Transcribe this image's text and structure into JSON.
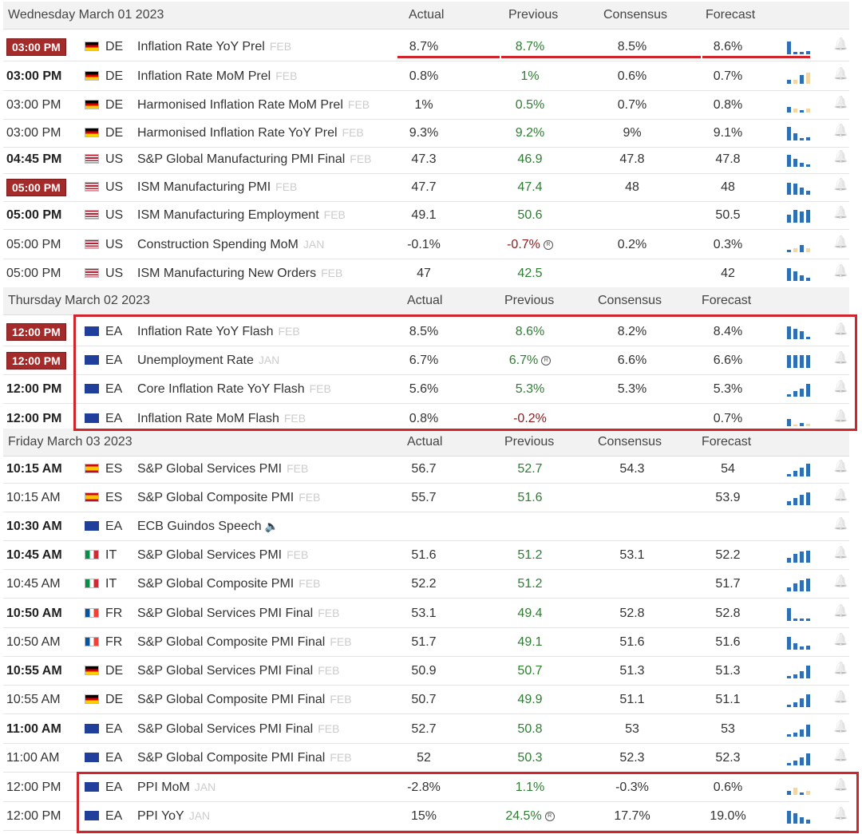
{
  "columns": {
    "actual": "Actual",
    "previous": "Previous",
    "consensus": "Consensus",
    "forecast": "Forecast"
  },
  "days": [
    {
      "date": "Wednesday March 01 2023",
      "rows": [
        {
          "time": "03:00 PM",
          "style": "badge",
          "ccy": "DE",
          "flag": "de",
          "event": "Inflation Rate YoY Prel",
          "ref": "FEB",
          "actual": "8.7%",
          "previous": "8.7%",
          "prev_color": "green",
          "consensus": "8.5%",
          "forecast": "8.6%",
          "bars": [
            0.9,
            0.15,
            0.15,
            0.2
          ],
          "barcolor": "#2f6fb3"
        },
        {
          "time": "03:00 PM",
          "style": "bold",
          "ccy": "DE",
          "flag": "de",
          "event": "Inflation Rate MoM Prel",
          "ref": "FEB",
          "actual": "0.8%",
          "previous": "1%",
          "prev_color": "green",
          "consensus": "0.6%",
          "forecast": "0.7%",
          "bars": [
            0.25,
            0.3,
            0.6,
            0.8
          ],
          "barcolor": "mixed"
        },
        {
          "time": "03:00 PM",
          "style": "normal",
          "ccy": "DE",
          "flag": "de",
          "event": "Harmonised Inflation Rate MoM Prel",
          "ref": "FEB",
          "actual": "1%",
          "previous": "0.5%",
          "prev_color": "green",
          "consensus": "0.7%",
          "forecast": "0.8%",
          "bars": [
            0.4,
            0.3,
            0.15,
            0.3
          ],
          "barcolor": "mixed"
        },
        {
          "time": "03:00 PM",
          "style": "normal",
          "ccy": "DE",
          "flag": "de",
          "event": "Harmonised Inflation Rate YoY Prel",
          "ref": "FEB",
          "actual": "9.3%",
          "previous": "9.2%",
          "prev_color": "green",
          "consensus": "9%",
          "forecast": "9.1%",
          "bars": [
            0.95,
            0.5,
            0.15,
            0.2
          ],
          "barcolor": "#2f6fb3"
        },
        {
          "time": "04:45 PM",
          "style": "bold",
          "ccy": "US",
          "flag": "us",
          "event": "S&P Global Manufacturing PMI Final",
          "ref": "FEB",
          "actual": "47.3",
          "previous": "46.9",
          "prev_color": "green",
          "consensus": "47.8",
          "forecast": "47.8",
          "bars": [
            0.85,
            0.55,
            0.3,
            0.15
          ],
          "barcolor": "#2f6fb3"
        },
        {
          "time": "05:00 PM",
          "style": "badge",
          "ccy": "US",
          "flag": "us",
          "event": "ISM Manufacturing PMI",
          "ref": "FEB",
          "actual": "47.7",
          "previous": "47.4",
          "prev_color": "green",
          "consensus": "48",
          "forecast": "48",
          "bars": [
            0.85,
            0.75,
            0.5,
            0.3
          ],
          "barcolor": "#2f6fb3"
        },
        {
          "time": "05:00 PM",
          "style": "bold",
          "ccy": "US",
          "flag": "us",
          "event": "ISM Manufacturing Employment",
          "ref": "FEB",
          "actual": "49.1",
          "previous": "50.6",
          "prev_color": "green",
          "consensus": "",
          "forecast": "50.5",
          "bars": [
            0.55,
            0.9,
            0.75,
            0.9
          ],
          "barcolor": "#2f6fb3"
        },
        {
          "time": "05:00 PM",
          "style": "normal",
          "ccy": "US",
          "flag": "us",
          "event": "Construction Spending MoM",
          "ref": "JAN",
          "actual": "-0.1%",
          "previous": "-0.7%",
          "prev_color": "red",
          "prev_revised": true,
          "consensus": "0.2%",
          "forecast": "0.3%",
          "bars": [
            0.15,
            0.3,
            0.5,
            0.25
          ],
          "barcolor": "mixed"
        },
        {
          "time": "05:00 PM",
          "style": "normal",
          "ccy": "US",
          "flag": "us",
          "event": "ISM Manufacturing New Orders",
          "ref": "FEB",
          "actual": "47",
          "previous": "42.5",
          "prev_color": "green",
          "consensus": "",
          "forecast": "42",
          "bars": [
            0.9,
            0.65,
            0.4,
            0.2
          ],
          "barcolor": "#2f6fb3"
        }
      ]
    },
    {
      "date": "Thursday March 02 2023",
      "rows": [
        {
          "time": "12:00 PM",
          "style": "badge",
          "ccy": "EA",
          "flag": "ea",
          "event": "Inflation Rate YoY Flash",
          "ref": "FEB",
          "actual": "8.5%",
          "previous": "8.6%",
          "prev_color": "green",
          "consensus": "8.2%",
          "forecast": "8.4%",
          "bars": [
            0.9,
            0.7,
            0.55,
            0.15
          ],
          "barcolor": "#2f6fb3"
        },
        {
          "time": "12:00 PM",
          "style": "badge",
          "ccy": "EA",
          "flag": "ea",
          "event": "Unemployment Rate",
          "ref": "JAN",
          "actual": "6.7%",
          "previous": "6.7%",
          "prev_color": "green",
          "prev_revised": true,
          "consensus": "6.6%",
          "forecast": "6.6%",
          "bars": [
            0.9,
            0.9,
            0.9,
            0.9
          ],
          "barcolor": "#2f6fb3"
        },
        {
          "time": "12:00 PM",
          "style": "bold",
          "ccy": "EA",
          "flag": "ea",
          "event": "Core Inflation Rate YoY Flash",
          "ref": "FEB",
          "actual": "5.6%",
          "previous": "5.3%",
          "prev_color": "green",
          "consensus": "5.3%",
          "forecast": "5.3%",
          "bars": [
            0.15,
            0.4,
            0.55,
            0.9
          ],
          "barcolor": "#2f6fb3"
        },
        {
          "time": "12:00 PM",
          "style": "bold",
          "ccy": "EA",
          "flag": "ea",
          "event": "Inflation Rate MoM Flash",
          "ref": "FEB",
          "actual": "0.8%",
          "previous": "-0.2%",
          "prev_color": "red",
          "consensus": "",
          "forecast": "0.7%",
          "bars": [
            0.5,
            0.1,
            0.2,
            0.15
          ],
          "barcolor": "mixed"
        }
      ]
    },
    {
      "date": "Friday March 03 2023",
      "rows": [
        {
          "time": "10:15 AM",
          "style": "bold",
          "ccy": "ES",
          "flag": "es",
          "event": "S&P Global Services PMI",
          "ref": "FEB",
          "actual": "56.7",
          "previous": "52.7",
          "prev_color": "green",
          "consensus": "54.3",
          "forecast": "54",
          "bars": [
            0.15,
            0.4,
            0.6,
            0.9
          ],
          "barcolor": "#2f6fb3"
        },
        {
          "time": "10:15 AM",
          "style": "normal",
          "ccy": "ES",
          "flag": "es",
          "event": "S&P Global Composite PMI",
          "ref": "FEB",
          "actual": "55.7",
          "previous": "51.6",
          "prev_color": "green",
          "consensus": "",
          "forecast": "53.9",
          "bars": [
            0.3,
            0.5,
            0.7,
            0.9
          ],
          "barcolor": "#2f6fb3"
        },
        {
          "time": "10:30 AM",
          "style": "bold",
          "ccy": "EA",
          "flag": "ea",
          "event": "ECB Guindos Speech",
          "ref": "",
          "speech": true,
          "actual": "",
          "previous": "",
          "prev_color": "green",
          "consensus": "",
          "forecast": "",
          "bars": [],
          "barcolor": "#2f6fb3"
        },
        {
          "time": "10:45 AM",
          "style": "bold",
          "ccy": "IT",
          "flag": "it",
          "event": "S&P Global Services PMI",
          "ref": "FEB",
          "actual": "51.6",
          "previous": "51.2",
          "prev_color": "green",
          "consensus": "53.1",
          "forecast": "52.2",
          "bars": [
            0.35,
            0.6,
            0.75,
            0.85
          ],
          "barcolor": "#2f6fb3"
        },
        {
          "time": "10:45 AM",
          "style": "normal",
          "ccy": "IT",
          "flag": "it",
          "event": "S&P Global Composite PMI",
          "ref": "FEB",
          "actual": "52.2",
          "previous": "51.2",
          "prev_color": "green",
          "consensus": "",
          "forecast": "51.7",
          "bars": [
            0.3,
            0.55,
            0.75,
            0.9
          ],
          "barcolor": "#2f6fb3"
        },
        {
          "time": "10:50 AM",
          "style": "bold",
          "ccy": "FR",
          "flag": "fr",
          "event": "S&P Global Services PMI Final",
          "ref": "FEB",
          "actual": "53.1",
          "previous": "49.4",
          "prev_color": "green",
          "consensus": "52.8",
          "forecast": "52.8",
          "bars": [
            0.9,
            0.15,
            0.15,
            0.15
          ],
          "barcolor": "#2f6fb3"
        },
        {
          "time": "10:50 AM",
          "style": "normal",
          "ccy": "FR",
          "flag": "fr",
          "event": "S&P Global Composite PMI Final",
          "ref": "FEB",
          "actual": "51.7",
          "previous": "49.1",
          "prev_color": "green",
          "consensus": "51.6",
          "forecast": "51.6",
          "bars": [
            0.9,
            0.45,
            0.2,
            0.3
          ],
          "barcolor": "#2f6fb3"
        },
        {
          "time": "10:55 AM",
          "style": "bold",
          "ccy": "DE",
          "flag": "de",
          "event": "S&P Global Services PMI Final",
          "ref": "FEB",
          "actual": "50.9",
          "previous": "50.7",
          "prev_color": "green",
          "consensus": "51.3",
          "forecast": "51.3",
          "bars": [
            0.15,
            0.3,
            0.5,
            0.9
          ],
          "barcolor": "#2f6fb3"
        },
        {
          "time": "10:55 AM",
          "style": "normal",
          "ccy": "DE",
          "flag": "de",
          "event": "S&P Global Composite PMI Final",
          "ref": "FEB",
          "actual": "50.7",
          "previous": "49.9",
          "prev_color": "green",
          "consensus": "51.1",
          "forecast": "51.1",
          "bars": [
            0.15,
            0.35,
            0.6,
            0.9
          ],
          "barcolor": "#2f6fb3"
        },
        {
          "time": "11:00 AM",
          "style": "bold",
          "ccy": "EA",
          "flag": "ea",
          "event": "S&P Global Services PMI Final",
          "ref": "FEB",
          "actual": "52.7",
          "previous": "50.8",
          "prev_color": "green",
          "consensus": "53",
          "forecast": "53",
          "bars": [
            0.15,
            0.3,
            0.5,
            0.85
          ],
          "barcolor": "#2f6fb3"
        },
        {
          "time": "11:00 AM",
          "style": "normal",
          "ccy": "EA",
          "flag": "ea",
          "event": "S&P Global Composite PMI Final",
          "ref": "FEB",
          "actual": "52",
          "previous": "50.3",
          "prev_color": "green",
          "consensus": "52.3",
          "forecast": "52.3",
          "bars": [
            0.15,
            0.35,
            0.55,
            0.85
          ],
          "barcolor": "#2f6fb3"
        },
        {
          "time": "12:00 PM",
          "style": "normal",
          "ccy": "EA",
          "flag": "ea",
          "event": "PPI MoM",
          "ref": "JAN",
          "actual": "-2.8%",
          "previous": "1.1%",
          "prev_color": "green",
          "consensus": "-0.3%",
          "forecast": "0.6%",
          "bars": [
            0.3,
            0.5,
            0.15,
            0.3
          ],
          "barcolor": "mixed"
        },
        {
          "time": "12:00 PM",
          "style": "normal",
          "ccy": "EA",
          "flag": "ea",
          "event": "PPI YoY",
          "ref": "JAN",
          "actual": "15%",
          "previous": "24.5%",
          "prev_color": "green",
          "prev_revised": true,
          "consensus": "17.7%",
          "forecast": "19.0%",
          "bars": [
            0.9,
            0.7,
            0.45,
            0.25
          ],
          "barcolor": "#2f6fb3"
        }
      ]
    }
  ]
}
